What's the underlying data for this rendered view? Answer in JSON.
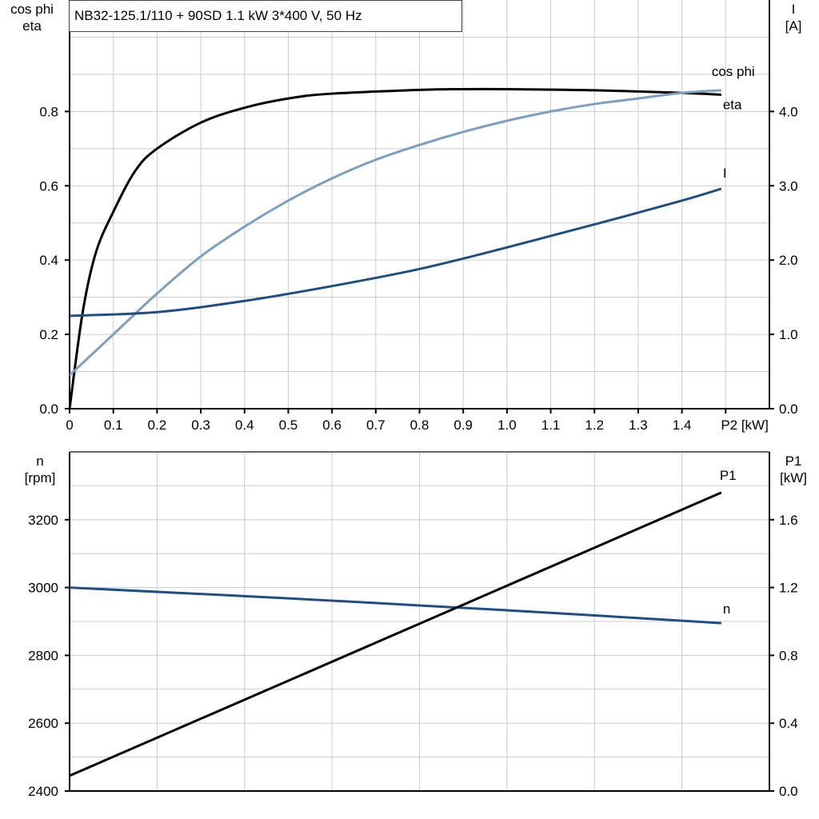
{
  "title": "NB32-125.1/110 + 90SD   1.1 kW   3*400 V, 50 Hz",
  "colors": {
    "eta": "#000000",
    "cos_phi": "#7a9fc0",
    "I": "#1f4e86",
    "n": "#1f4e86",
    "P1": "#000000",
    "grid": "#cccccc"
  },
  "chart_data": [
    {
      "type": "line",
      "xlabel": "P2 [kW]",
      "ylabel_left": "cos phi\neta",
      "ylabel_left_lines": [
        "cos phi",
        "eta"
      ],
      "ylabel_right_lines": [
        "I",
        "[A]"
      ],
      "xlim": [
        0,
        1.6
      ],
      "ylim_left": [
        0,
        1.1
      ],
      "ylim_right": [
        0,
        5.5
      ],
      "grid": true,
      "x_ticks": [
        "0",
        "0.1",
        "0.2",
        "0.3",
        "0.4",
        "0.5",
        "0.6",
        "0.7",
        "0.8",
        "0.9",
        "1.0",
        "1.1",
        "1.2",
        "1.3",
        "1.4"
      ],
      "y_left_ticks": [
        "0.0",
        "0.2",
        "0.4",
        "0.6",
        "0.8"
      ],
      "y_right_ticks": [
        "0.0",
        "1.0",
        "2.0",
        "3.0",
        "4.0"
      ],
      "series": [
        {
          "name": "eta",
          "axis": "left",
          "x": [
            0,
            0.03,
            0.06,
            0.1,
            0.15,
            0.2,
            0.3,
            0.4,
            0.5,
            0.6,
            0.8,
            0.9,
            1.0,
            1.2,
            1.4,
            1.49
          ],
          "y": [
            0,
            0.26,
            0.42,
            0.53,
            0.64,
            0.7,
            0.77,
            0.81,
            0.835,
            0.848,
            0.858,
            0.86,
            0.86,
            0.857,
            0.85,
            0.845
          ]
        },
        {
          "name": "cos phi",
          "axis": "left",
          "x": [
            0,
            0.1,
            0.2,
            0.3,
            0.4,
            0.5,
            0.6,
            0.7,
            0.8,
            0.9,
            1.0,
            1.1,
            1.2,
            1.3,
            1.4,
            1.49
          ],
          "y": [
            0.09,
            0.2,
            0.31,
            0.41,
            0.49,
            0.56,
            0.62,
            0.67,
            0.71,
            0.745,
            0.775,
            0.8,
            0.82,
            0.835,
            0.85,
            0.857
          ]
        },
        {
          "name": "I",
          "axis": "right",
          "x": [
            0,
            0.2,
            0.4,
            0.6,
            0.8,
            1.0,
            1.2,
            1.4,
            1.49
          ],
          "y": [
            1.25,
            1.3,
            1.45,
            1.65,
            1.88,
            2.17,
            2.48,
            2.8,
            2.96
          ]
        }
      ]
    },
    {
      "type": "line",
      "ylabel_left_lines": [
        "n",
        "[rpm]"
      ],
      "ylabel_right_lines": [
        "P1",
        "[kW]"
      ],
      "xlim": [
        0,
        1.6
      ],
      "ylim_left": [
        2400,
        3400
      ],
      "ylim_right": [
        0,
        2.0
      ],
      "grid": true,
      "y_left_ticks": [
        "2400",
        "2600",
        "2800",
        "3000",
        "3200"
      ],
      "y_right_ticks": [
        "0.0",
        "0.4",
        "0.8",
        "1.2",
        "1.6"
      ],
      "series": [
        {
          "name": "n",
          "axis": "left",
          "x": [
            0,
            0.5,
            1.0,
            1.49
          ],
          "y": [
            3000,
            2968,
            2933,
            2895
          ]
        },
        {
          "name": "P1",
          "axis": "right",
          "x": [
            0,
            1.49
          ],
          "y": [
            0.09,
            1.76
          ]
        }
      ]
    }
  ]
}
